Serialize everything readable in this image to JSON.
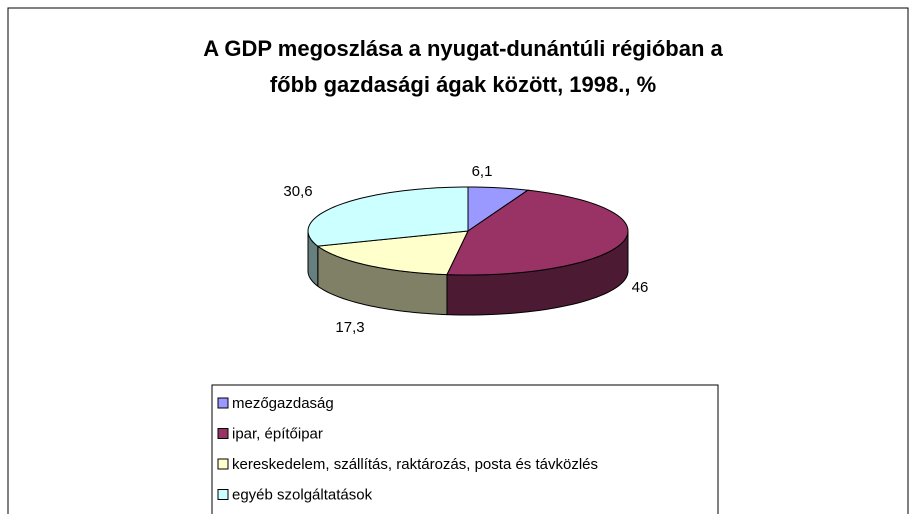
{
  "chart_data": {
    "type": "pie3d",
    "title": "A GDP megoszlása a nyugat-dunántúli régióban a főbb gazdasági ágak között, 1998., %",
    "categories": [
      "mezőgazdaság",
      "ipar, építőipar",
      "kereskedelem, szállítás, raktározás, posta és távközlés",
      "egyéb szolgáltatások"
    ],
    "values": [
      6.1,
      46,
      17.3,
      30.6
    ],
    "value_labels": [
      "6,1",
      "46",
      "17,3",
      "30,6"
    ],
    "colors": [
      "#9999ff",
      "#993366",
      "#ffffcc",
      "#ccffff"
    ],
    "legend": "bottom"
  }
}
